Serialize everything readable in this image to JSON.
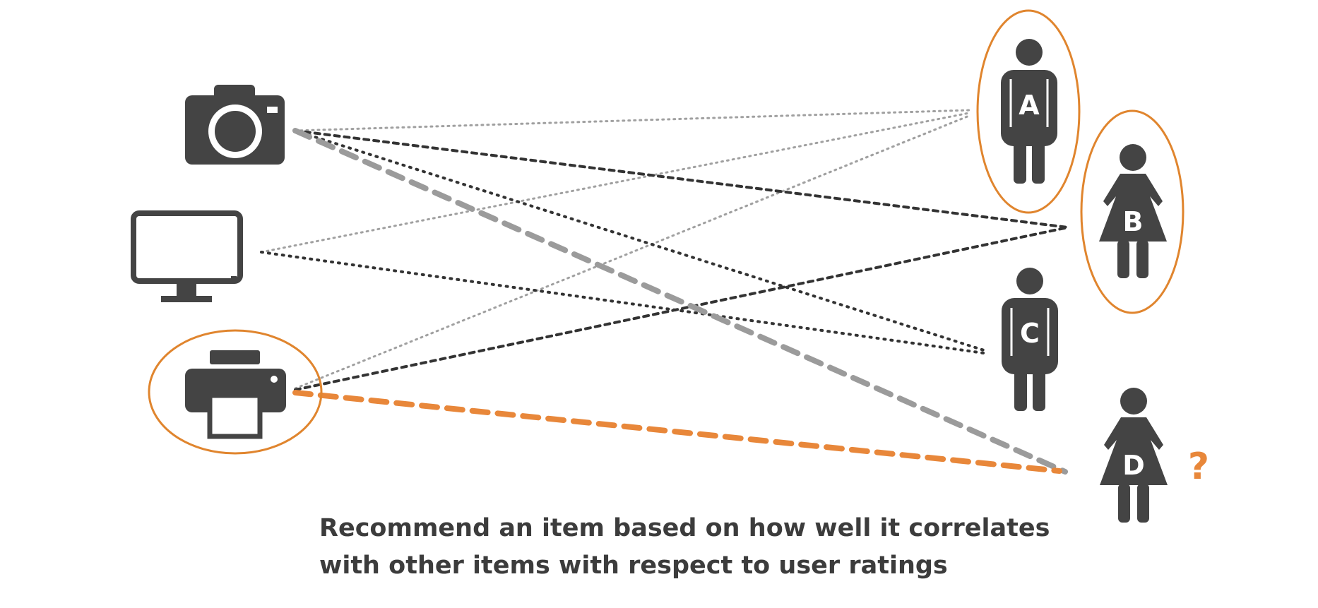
{
  "colors": {
    "icon": "#444444",
    "highlight": "#e0852e",
    "line_light": "#9a9a9a",
    "line_dark": "#333333",
    "line_gray_bold": "#9b9b9b",
    "recommend": "#e8873a"
  },
  "items": [
    {
      "name": "camera",
      "icon": "camera-icon",
      "highlighted": false
    },
    {
      "name": "monitor",
      "icon": "monitor-icon",
      "highlighted": false
    },
    {
      "name": "printer",
      "icon": "printer-icon",
      "highlighted": true
    }
  ],
  "users": [
    {
      "label": "A",
      "icon": "male-user-icon",
      "highlighted": true
    },
    {
      "label": "B",
      "icon": "female-user-icon",
      "highlighted": true
    },
    {
      "label": "C",
      "icon": "male-user-icon",
      "highlighted": false
    },
    {
      "label": "D",
      "icon": "female-user-icon",
      "highlighted": false,
      "suffix": "?"
    }
  ],
  "caption": {
    "line1": "Recommend an item based on how well it correlates",
    "line2": "with other items with respect to user ratings"
  }
}
